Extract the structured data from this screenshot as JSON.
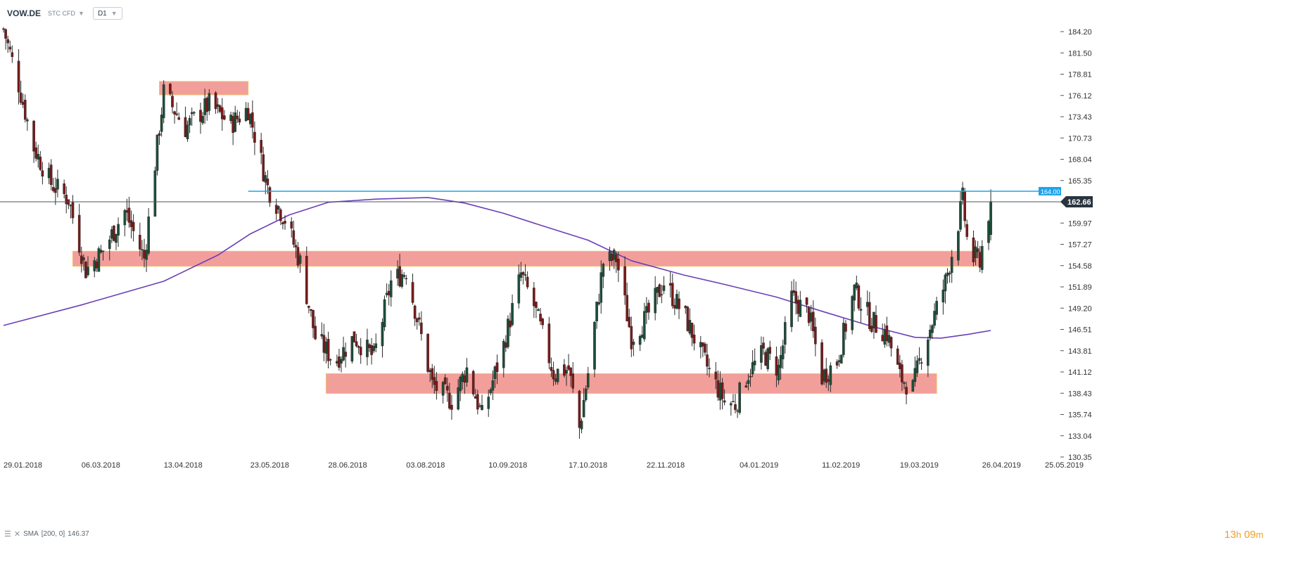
{
  "header": {
    "symbol": "VOW.DE",
    "instrument_type": "STC CFD",
    "interval": "D1"
  },
  "indicator": {
    "label": "SMA",
    "params": "[200, 0]",
    "value": "146.37"
  },
  "countdown": {
    "hours": "13",
    "h": "h",
    "minutes": "09",
    "m": "m"
  },
  "colors": {
    "bullish": "#1e4d3a",
    "bearish": "#7a1a1a",
    "sma": "#6b3fb7",
    "resistance_line": "#1fa3e8",
    "zone_fill": "#f08e89",
    "zone_border": "#f2c070",
    "price_tag": "#2a3440"
  },
  "chart_data": {
    "type": "candlestick",
    "y_ticks": [
      "184.20",
      "181.50",
      "178.81",
      "176.12",
      "173.43",
      "170.73",
      "168.04",
      "165.35",
      "162.66",
      "159.97",
      "157.27",
      "154.58",
      "151.89",
      "149.20",
      "146.51",
      "143.81",
      "141.12",
      "138.43",
      "135.74",
      "133.04",
      "130.35"
    ],
    "ylim": [
      130.35,
      184.2
    ],
    "x_labels": [
      "29.01.2018",
      "06.03.2018",
      "13.04.2018",
      "23.05.2018",
      "28.06.2018",
      "03.08.2018",
      "10.09.2018",
      "17.10.2018",
      "22.11.2018",
      "04.01.2019",
      "11.02.2019",
      "19.03.2019",
      "26.04.2019",
      "25.05.2019"
    ],
    "current_price": "162.66",
    "resistance_level": "164.00",
    "zones": [
      {
        "from_date": "2018-04-11",
        "to_date": "2018-05-22",
        "low": 176.2,
        "high": 177.9
      },
      {
        "from_date": "2018-03-02",
        "to_date": "2019-04-26",
        "low": 154.5,
        "high": 156.4
      },
      {
        "from_date": "2018-06-27",
        "to_date": "2019-04-05",
        "low": 138.4,
        "high": 140.9
      }
    ],
    "sma_200": [
      {
        "date": "2018-01-29",
        "value": 147.0
      },
      {
        "date": "2018-03-06",
        "value": 149.6
      },
      {
        "date": "2018-04-13",
        "value": 152.6
      },
      {
        "date": "2018-05-08",
        "value": 155.9
      },
      {
        "date": "2018-05-23",
        "value": 158.6
      },
      {
        "date": "2018-06-10",
        "value": 161.0
      },
      {
        "date": "2018-06-28",
        "value": 162.6
      },
      {
        "date": "2018-07-20",
        "value": 163.0
      },
      {
        "date": "2018-08-13",
        "value": 163.2
      },
      {
        "date": "2018-08-30",
        "value": 162.5
      },
      {
        "date": "2018-09-17",
        "value": 161.2
      },
      {
        "date": "2018-10-04",
        "value": 159.7
      },
      {
        "date": "2018-10-26",
        "value": 157.8
      },
      {
        "date": "2018-11-15",
        "value": 155.2
      },
      {
        "date": "2018-12-09",
        "value": 153.4
      },
      {
        "date": "2018-12-28",
        "value": 152.2
      },
      {
        "date": "2019-01-21",
        "value": 150.6
      },
      {
        "date": "2019-02-11",
        "value": 148.8
      },
      {
        "date": "2019-03-06",
        "value": 146.9
      },
      {
        "date": "2019-03-26",
        "value": 145.5
      },
      {
        "date": "2019-04-07",
        "value": 145.4
      },
      {
        "date": "2019-04-20",
        "value": 145.9
      },
      {
        "date": "2019-04-30",
        "value": 146.37
      }
    ],
    "ohlc_anchors": [
      {
        "date": "2018-01-29",
        "close": 184.5
      },
      {
        "date": "2018-02-05",
        "close": 177.5
      },
      {
        "date": "2018-02-12",
        "close": 169.5
      },
      {
        "date": "2018-02-20",
        "close": 165.0
      },
      {
        "date": "2018-02-28",
        "close": 163.0
      },
      {
        "date": "2018-03-08",
        "close": 154.0
      },
      {
        "date": "2018-03-16",
        "close": 156.5
      },
      {
        "date": "2018-03-26",
        "close": 161.5
      },
      {
        "date": "2018-04-04",
        "close": 155.5
      },
      {
        "date": "2018-04-09",
        "close": 167.5
      },
      {
        "date": "2018-04-13",
        "close": 176.5
      },
      {
        "date": "2018-04-23",
        "close": 172.0
      },
      {
        "date": "2018-05-04",
        "close": 175.0
      },
      {
        "date": "2018-05-14",
        "close": 172.5
      },
      {
        "date": "2018-05-22",
        "close": 174.5
      },
      {
        "date": "2018-05-31",
        "close": 164.5
      },
      {
        "date": "2018-06-08",
        "close": 160.5
      },
      {
        "date": "2018-06-15",
        "close": 155.0
      },
      {
        "date": "2018-06-22",
        "close": 145.5
      },
      {
        "date": "2018-07-01",
        "close": 142.5
      },
      {
        "date": "2018-07-10",
        "close": 145.5
      },
      {
        "date": "2018-07-19",
        "close": 143.0
      },
      {
        "date": "2018-07-27",
        "close": 152.5
      },
      {
        "date": "2018-08-03",
        "close": 154.0
      },
      {
        "date": "2018-08-15",
        "close": 139.5
      },
      {
        "date": "2018-08-24",
        "close": 137.5
      },
      {
        "date": "2018-08-31",
        "close": 141.5
      },
      {
        "date": "2018-09-07",
        "close": 135.5
      },
      {
        "date": "2018-09-17",
        "close": 144.5
      },
      {
        "date": "2018-09-25",
        "close": 153.5
      },
      {
        "date": "2018-10-01",
        "close": 149.5
      },
      {
        "date": "2018-10-10",
        "close": 141.0
      },
      {
        "date": "2018-10-17",
        "close": 141.5
      },
      {
        "date": "2018-10-22",
        "close": 134.0
      },
      {
        "date": "2018-10-26",
        "close": 141.0
      },
      {
        "date": "2018-11-02",
        "close": 155.0
      },
      {
        "date": "2018-11-08",
        "close": 155.5
      },
      {
        "date": "2018-11-15",
        "close": 145.5
      },
      {
        "date": "2018-11-22",
        "close": 148.0
      },
      {
        "date": "2018-11-30",
        "close": 152.5
      },
      {
        "date": "2018-12-10",
        "close": 148.0
      },
      {
        "date": "2018-12-17",
        "close": 143.5
      },
      {
        "date": "2018-12-24",
        "close": 139.5
      },
      {
        "date": "2018-12-28",
        "close": 137.5
      },
      {
        "date": "2019-01-02",
        "close": 137.0
      },
      {
        "date": "2019-01-08",
        "close": 141.0
      },
      {
        "date": "2019-01-15",
        "close": 143.5
      },
      {
        "date": "2019-01-22",
        "close": 141.5
      },
      {
        "date": "2019-01-28",
        "close": 150.5
      },
      {
        "date": "2019-02-05",
        "close": 148.5
      },
      {
        "date": "2019-02-11",
        "close": 140.5
      },
      {
        "date": "2019-02-18",
        "close": 142.5
      },
      {
        "date": "2019-02-26",
        "close": 151.5
      },
      {
        "date": "2019-03-06",
        "close": 147.5
      },
      {
        "date": "2019-03-13",
        "close": 146.0
      },
      {
        "date": "2019-03-19",
        "close": 140.5
      },
      {
        "date": "2019-03-25",
        "close": 139.0
      },
      {
        "date": "2019-03-29",
        "close": 143.5
      },
      {
        "date": "2019-04-03",
        "close": 147.5
      },
      {
        "date": "2019-04-09",
        "close": 152.5
      },
      {
        "date": "2019-04-14",
        "close": 158.5
      },
      {
        "date": "2019-04-17",
        "close": 163.0
      },
      {
        "date": "2019-04-20",
        "close": 155.5
      },
      {
        "date": "2019-04-25",
        "close": 155.5
      },
      {
        "date": "2019-04-30",
        "close": 162.7
      }
    ]
  }
}
